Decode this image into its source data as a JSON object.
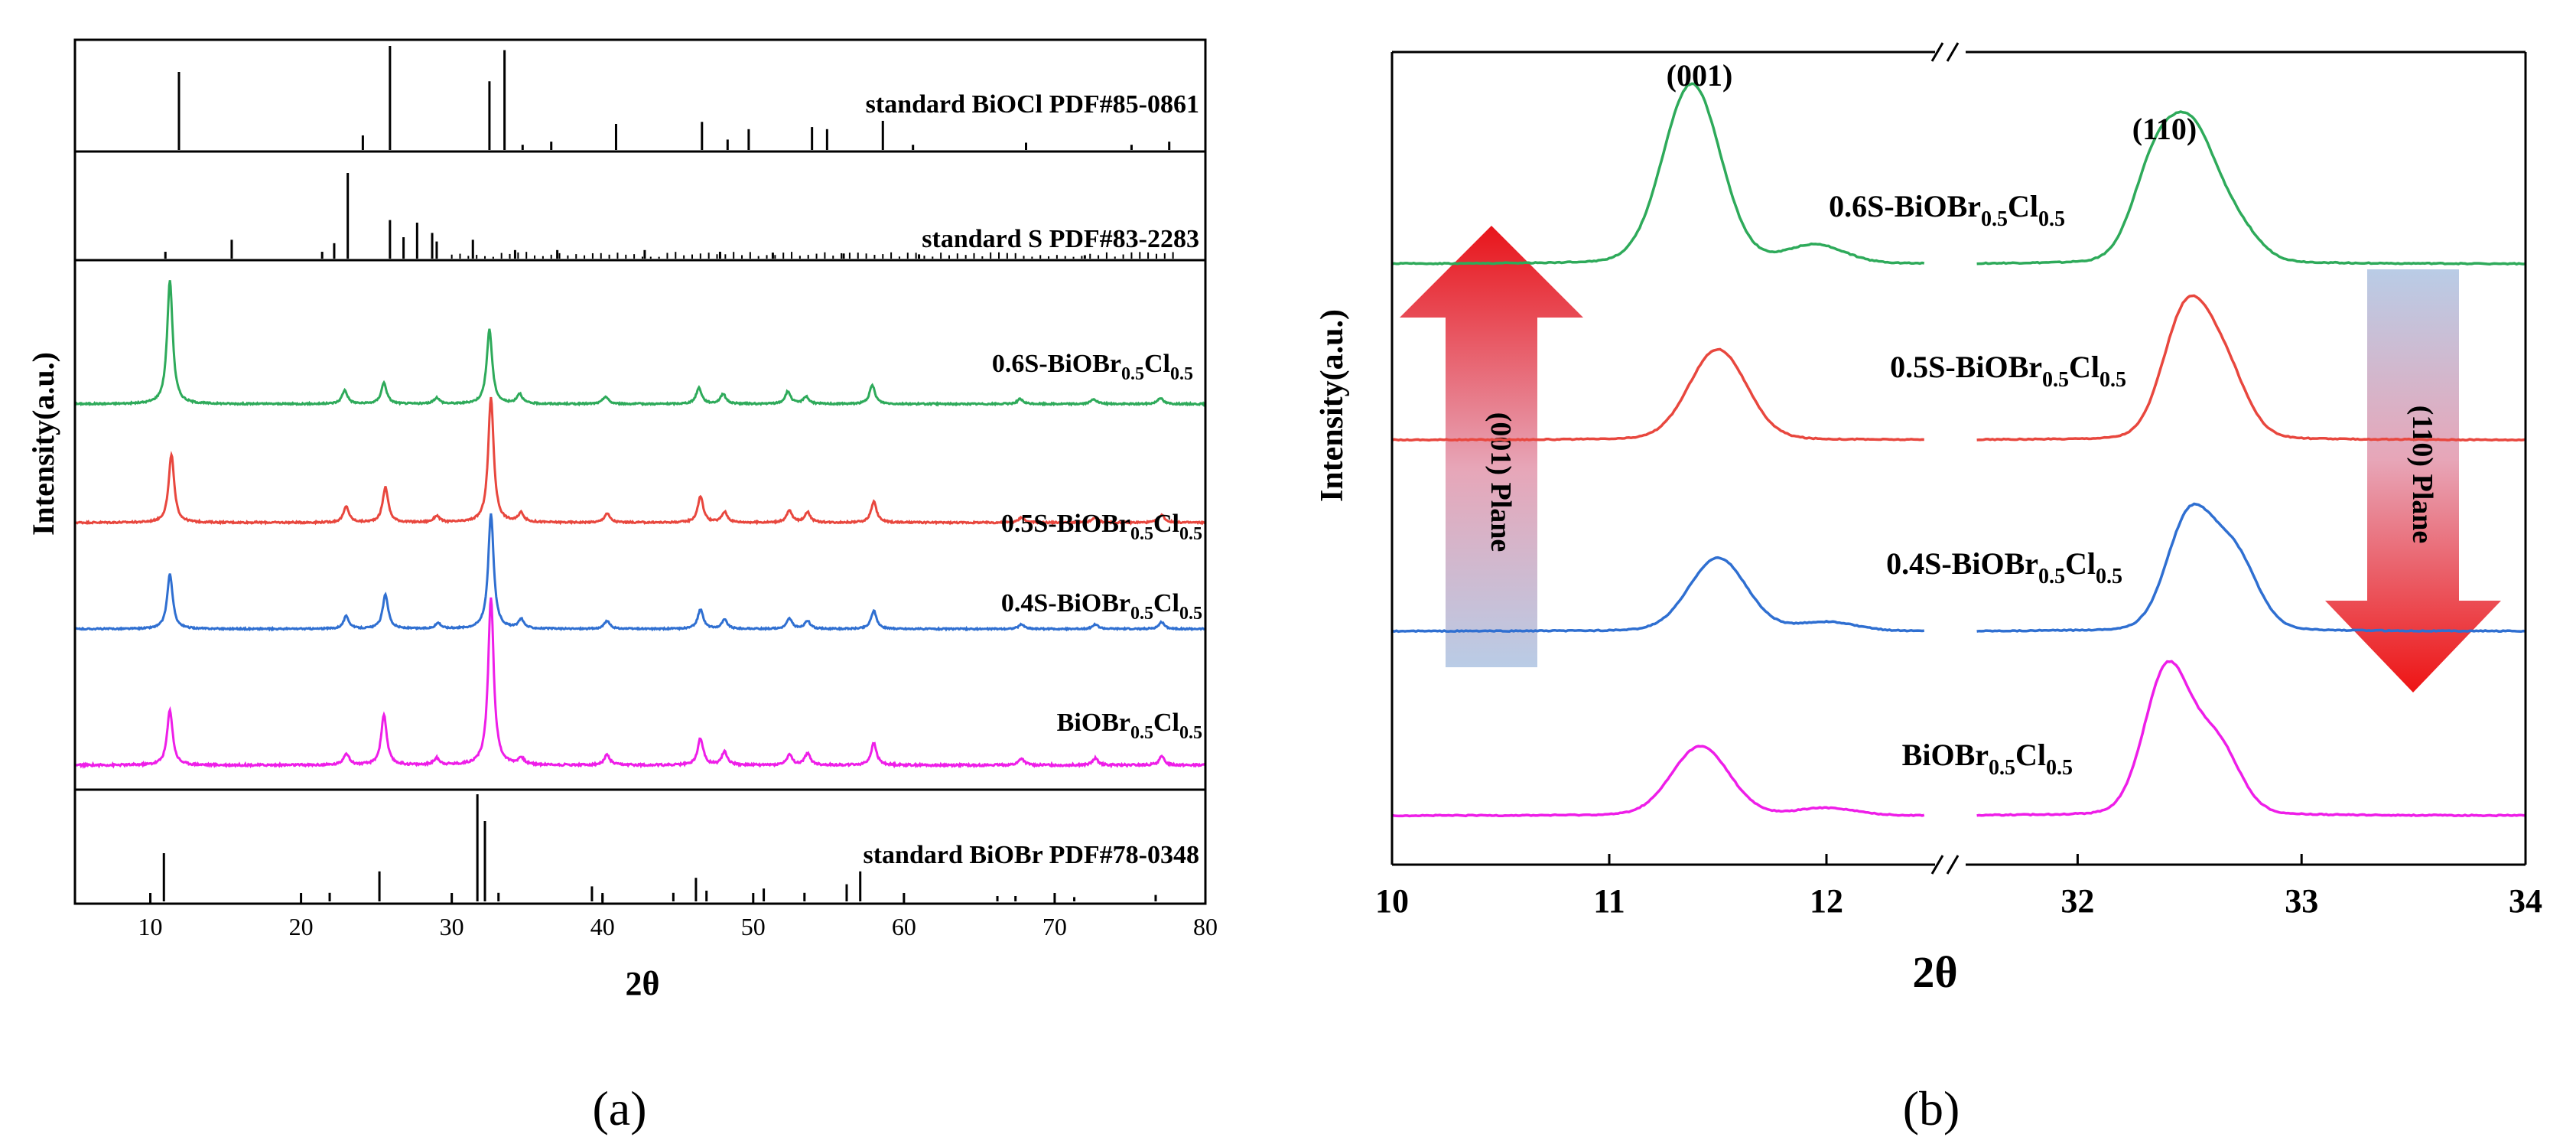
{
  "colors": {
    "green": "#2eaa5a",
    "red": "#e8473e",
    "blue": "#2f6fd1",
    "magenta": "#ee1ee8",
    "black": "#000000"
  },
  "panel_a": {
    "caption": "(a)",
    "ylabel": "Intensity(a.u.)",
    "xlabel": "2θ"
  },
  "panel_b": {
    "caption": "(b)",
    "ylabel": "Intensity(a.u.)",
    "xlabel": "2θ",
    "peak_label_001": "(001)",
    "peak_label_110": "(110)",
    "arrow_up_label": "(001) Plane",
    "arrow_down_label": "(110) Plane"
  },
  "chart_data": [
    {
      "type": "line",
      "panel": "a",
      "title": "",
      "xlabel": "2θ",
      "ylabel": "Intensity(a.u.)",
      "xlim": [
        5,
        80
      ],
      "xticks": [
        10,
        20,
        30,
        40,
        50,
        60,
        70,
        80
      ],
      "reference_patterns": [
        {
          "name": "standard BiOCl PDF#85-0861",
          "position": "top",
          "peaks": [
            [
              11.9,
              0.75
            ],
            [
              24.1,
              0.14
            ],
            [
              25.9,
              1.0
            ],
            [
              32.5,
              0.66
            ],
            [
              33.5,
              0.96
            ],
            [
              34.7,
              0.05
            ],
            [
              36.6,
              0.08
            ],
            [
              40.9,
              0.25
            ],
            [
              46.6,
              0.27
            ],
            [
              48.3,
              0.1
            ],
            [
              49.7,
              0.2
            ],
            [
              53.9,
              0.22
            ],
            [
              54.9,
              0.2
            ],
            [
              58.6,
              0.28
            ],
            [
              60.6,
              0.05
            ],
            [
              68.1,
              0.07
            ],
            [
              75.1,
              0.05
            ],
            [
              77.6,
              0.08
            ]
          ]
        },
        {
          "name": "standard S PDF#83-2283",
          "position": "upper",
          "peaks": [
            [
              11.0,
              0.08
            ],
            [
              15.4,
              0.22
            ],
            [
              21.4,
              0.08
            ],
            [
              22.2,
              0.18
            ],
            [
              23.1,
              1.0
            ],
            [
              25.9,
              0.45
            ],
            [
              26.8,
              0.25
            ],
            [
              27.7,
              0.42
            ],
            [
              28.7,
              0.3
            ],
            [
              29.0,
              0.2
            ],
            [
              31.4,
              0.22
            ],
            [
              34.2,
              0.1
            ],
            [
              37.0,
              0.1
            ],
            [
              42.8,
              0.1
            ],
            [
              47.8,
              0.08
            ],
            [
              51.3,
              0.07
            ],
            [
              56.0,
              0.06
            ],
            [
              61.0,
              0.05
            ],
            [
              72.0,
              0.04
            ]
          ]
        },
        {
          "name": "standard BiOBr PDF#78-0348",
          "position": "bottom",
          "peaks": [
            [
              10.9,
              0.45
            ],
            [
              21.9,
              0.08
            ],
            [
              25.2,
              0.28
            ],
            [
              31.7,
              1.0
            ],
            [
              32.2,
              0.75
            ],
            [
              33.1,
              0.08
            ],
            [
              39.3,
              0.14
            ],
            [
              40.0,
              0.06
            ],
            [
              44.7,
              0.08
            ],
            [
              46.2,
              0.22
            ],
            [
              46.9,
              0.1
            ],
            [
              50.7,
              0.12
            ],
            [
              53.4,
              0.08
            ],
            [
              56.2,
              0.16
            ],
            [
              57.1,
              0.28
            ],
            [
              66.2,
              0.05
            ],
            [
              67.4,
              0.05
            ],
            [
              71.3,
              0.04
            ],
            [
              76.7,
              0.06
            ]
          ]
        }
      ],
      "series": [
        {
          "name": "0.6S-BiOBr0.5Cl0.5",
          "color": "#2eaa5a",
          "peaks": [
            [
              11.3,
              1.0
            ],
            [
              22.9,
              0.11
            ],
            [
              25.5,
              0.17
            ],
            [
              29.0,
              0.05
            ],
            [
              32.5,
              0.6
            ],
            [
              34.5,
              0.08
            ],
            [
              40.2,
              0.06
            ],
            [
              46.4,
              0.13
            ],
            [
              48.0,
              0.08
            ],
            [
              52.3,
              0.1
            ],
            [
              53.5,
              0.06
            ],
            [
              57.9,
              0.15
            ],
            [
              67.7,
              0.04
            ],
            [
              72.6,
              0.04
            ],
            [
              77.0,
              0.05
            ]
          ]
        },
        {
          "name": "0.5S-BiOBr0.5Cl0.5",
          "color": "#e8473e",
          "peaks": [
            [
              11.4,
              0.52
            ],
            [
              23.0,
              0.12
            ],
            [
              25.6,
              0.27
            ],
            [
              29.0,
              0.05
            ],
            [
              32.6,
              0.95
            ],
            [
              34.6,
              0.07
            ],
            [
              40.3,
              0.07
            ],
            [
              46.5,
              0.2
            ],
            [
              48.1,
              0.08
            ],
            [
              52.4,
              0.09
            ],
            [
              53.6,
              0.08
            ],
            [
              58.0,
              0.16
            ],
            [
              67.8,
              0.04
            ],
            [
              72.7,
              0.04
            ],
            [
              77.1,
              0.06
            ]
          ]
        },
        {
          "name": "0.4S-BiOBr0.5Cl0.5",
          "color": "#2f6fd1",
          "peaks": [
            [
              11.3,
              0.48
            ],
            [
              23.0,
              0.11
            ],
            [
              25.6,
              0.3
            ],
            [
              29.1,
              0.05
            ],
            [
              32.6,
              1.0
            ],
            [
              34.6,
              0.08
            ],
            [
              40.3,
              0.07
            ],
            [
              46.5,
              0.17
            ],
            [
              48.1,
              0.08
            ],
            [
              52.4,
              0.09
            ],
            [
              53.6,
              0.07
            ],
            [
              58.0,
              0.16
            ],
            [
              67.8,
              0.04
            ],
            [
              72.7,
              0.04
            ],
            [
              77.1,
              0.06
            ]
          ]
        },
        {
          "name": "BiOBr0.5Cl0.5",
          "color": "#ee1ee8",
          "peaks": [
            [
              11.3,
              0.33
            ],
            [
              23.0,
              0.07
            ],
            [
              25.5,
              0.3
            ],
            [
              29.0,
              0.04
            ],
            [
              32.6,
              1.0
            ],
            [
              34.6,
              0.04
            ],
            [
              40.3,
              0.06
            ],
            [
              46.5,
              0.16
            ],
            [
              48.1,
              0.08
            ],
            [
              52.4,
              0.06
            ],
            [
              53.6,
              0.07
            ],
            [
              58.0,
              0.13
            ],
            [
              67.8,
              0.04
            ],
            [
              72.7,
              0.04
            ],
            [
              77.1,
              0.05
            ]
          ]
        }
      ]
    },
    {
      "type": "line",
      "panel": "b",
      "title": "",
      "xlabel": "2θ",
      "ylabel": "Intensity(a.u.)",
      "axis_break": true,
      "x_segments": [
        [
          10,
          12.5
        ],
        [
          31.5,
          34
        ]
      ],
      "xticks_left": [
        10,
        11,
        12
      ],
      "xticks_right": [
        32,
        33,
        34
      ],
      "series": [
        {
          "name": "0.6S-BiOBr0.5Cl0.5",
          "color": "#2eaa5a",
          "peaks": [
            [
              11.38,
              1.0
            ],
            [
              11.95,
              0.1
            ],
            [
              32.35,
              0.55
            ],
            [
              32.52,
              0.62
            ],
            [
              32.7,
              0.2
            ]
          ]
        },
        {
          "name": "0.5S-BiOBr0.5Cl0.5",
          "color": "#e8473e",
          "peaks": [
            [
              11.5,
              0.52
            ],
            [
              32.48,
              0.7
            ],
            [
              32.65,
              0.4
            ]
          ]
        },
        {
          "name": "0.4S-BiOBr0.5Cl0.5",
          "color": "#2f6fd1",
          "peaks": [
            [
              11.5,
              0.42
            ],
            [
              12.0,
              0.05
            ],
            [
              32.5,
              0.65
            ],
            [
              32.7,
              0.42
            ]
          ]
        },
        {
          "name": "BiOBr0.5Cl0.5",
          "color": "#ee1ee8",
          "peaks": [
            [
              11.42,
              0.38
            ],
            [
              12.0,
              0.04
            ],
            [
              32.4,
              0.8
            ],
            [
              32.62,
              0.38
            ]
          ]
        }
      ]
    }
  ],
  "legend_a": [
    {
      "prefix": "standard BiOCl PDF#85-0861"
    },
    {
      "prefix": "standard S PDF#83-2283"
    },
    {
      "prefix": "0.6S-BiOBr",
      "sub1": "0.5",
      "mid": "Cl",
      "sub2": "0.5"
    },
    {
      "prefix": "0.5S-BiOBr",
      "sub1": "0.5",
      "mid": "Cl",
      "sub2": "0.5"
    },
    {
      "prefix": "0.4S-BiOBr",
      "sub1": "0.5",
      "mid": "Cl",
      "sub2": "0.5"
    },
    {
      "prefix": "BiOBr",
      "sub1": "0.5",
      "mid": "Cl",
      "sub2": "0.5"
    },
    {
      "prefix": "standard BiOBr PDF#78-0348"
    }
  ],
  "legend_b": [
    {
      "prefix": "0.6S-BiOBr",
      "sub1": "0.5",
      "mid": "Cl",
      "sub2": "0.5"
    },
    {
      "prefix": "0.5S-BiOBr",
      "sub1": "0.5",
      "mid": "Cl",
      "sub2": "0.5"
    },
    {
      "prefix": "0.4S-BiOBr",
      "sub1": "0.5",
      "mid": "Cl",
      "sub2": "0.5"
    },
    {
      "prefix": "BiOBr",
      "sub1": "0.5",
      "mid": "Cl",
      "sub2": "0.5"
    }
  ]
}
